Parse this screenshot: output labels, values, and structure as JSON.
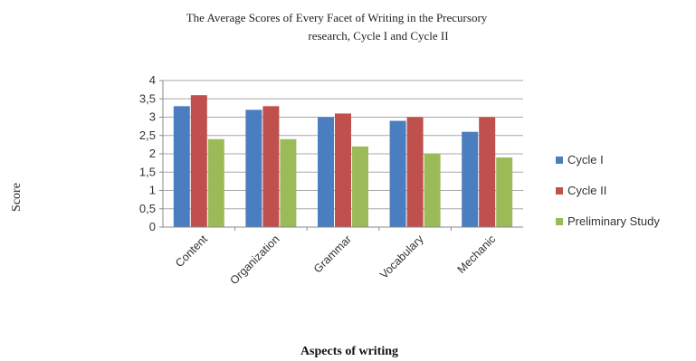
{
  "chart_data": {
    "type": "bar",
    "title_line1": "The Average Scores of Every Facet of Writing in the Precursory",
    "title_line2": "research, Cycle I and Cycle II",
    "xlabel": "Aspects of writing",
    "ylabel": "Score",
    "ylim": [
      0,
      4
    ],
    "yticks": [
      "0",
      "0,5",
      "1",
      "1,5",
      "2",
      "2,5",
      "3",
      "3,5",
      "4"
    ],
    "categories": [
      "Content",
      "Organization",
      "Grammar",
      "Vocabulary",
      "Mechanic"
    ],
    "grid": true,
    "legend_position": "right",
    "series": [
      {
        "name": "Cycle I",
        "color": "#4a7ec0",
        "values": [
          3.3,
          3.2,
          3.0,
          2.9,
          2.6
        ]
      },
      {
        "name": "Cycle II",
        "color": "#c0504d",
        "values": [
          3.6,
          3.3,
          3.1,
          3.0,
          3.0
        ]
      },
      {
        "name": "Preliminary Study",
        "color": "#9bbb59",
        "values": [
          2.4,
          2.4,
          2.2,
          2.0,
          1.9
        ]
      }
    ]
  }
}
